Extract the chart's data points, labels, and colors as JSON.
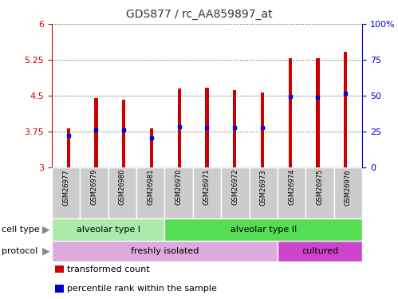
{
  "title": "GDS877 / rc_AA859897_at",
  "samples": [
    "GSM26977",
    "GSM26979",
    "GSM26980",
    "GSM26981",
    "GSM26970",
    "GSM26971",
    "GSM26972",
    "GSM26973",
    "GSM26974",
    "GSM26975",
    "GSM26976"
  ],
  "bar_values": [
    3.82,
    4.45,
    4.42,
    3.82,
    4.65,
    4.67,
    4.62,
    4.57,
    5.28,
    5.28,
    5.42
  ],
  "blue_dot_values": [
    3.67,
    3.78,
    3.78,
    3.62,
    3.85,
    3.84,
    3.84,
    3.84,
    4.48,
    4.47,
    4.55
  ],
  "ylim": [
    3.0,
    6.0
  ],
  "yticks": [
    3.0,
    3.75,
    4.5,
    5.25,
    6.0
  ],
  "ytick_labels": [
    "3",
    "3.75",
    "4.5",
    "5.25",
    "6"
  ],
  "right_yticks": [
    0,
    25,
    50,
    75,
    100
  ],
  "right_ytick_labels": [
    "0",
    "25",
    "50",
    "75",
    "100%"
  ],
  "bar_color": "#cc0000",
  "dot_color": "#0000cc",
  "cell_type_groups": [
    {
      "label": "alveolar type I",
      "start": 0,
      "end": 4,
      "color": "#aaeaaa"
    },
    {
      "label": "alveolar type II",
      "start": 4,
      "end": 11,
      "color": "#55dd55"
    }
  ],
  "protocol_groups": [
    {
      "label": "freshly isolated",
      "start": 0,
      "end": 8,
      "color": "#ddaadd"
    },
    {
      "label": "cultured",
      "start": 8,
      "end": 11,
      "color": "#cc44cc"
    }
  ],
  "legend_items": [
    {
      "label": "transformed count",
      "color": "#cc0000"
    },
    {
      "label": "percentile rank within the sample",
      "color": "#0000cc"
    }
  ],
  "ylabel_left_color": "#cc0000",
  "ylabel_right_color": "#0000cc",
  "title_color": "#333333",
  "tick_label_bg": "#cccccc",
  "bar_width": 0.12
}
